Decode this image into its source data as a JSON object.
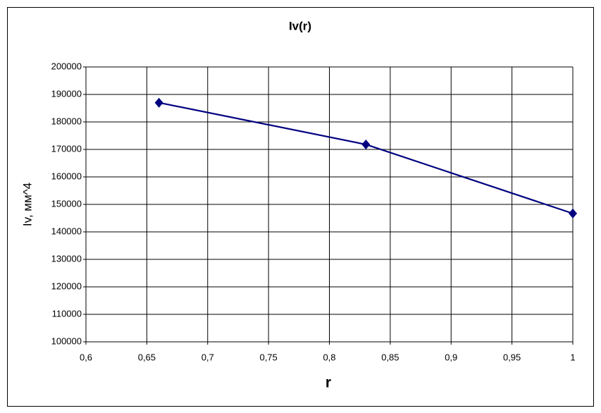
{
  "chart_data": {
    "type": "scatter-line",
    "title": "Iv(r)",
    "x_label": "r",
    "y_label": "Iv, мм^4",
    "x": [
      0.66,
      0.83,
      1
    ],
    "values": [
      187000,
      171800,
      146700
    ],
    "color": "#000080",
    "xlim": [
      0.6,
      1
    ],
    "xticks": [
      {
        "value": 0.6,
        "label": "0,6"
      },
      {
        "value": 0.65,
        "label": "0,65"
      },
      {
        "value": 0.7,
        "label": "0,7"
      },
      {
        "value": 0.75,
        "label": "0,75"
      },
      {
        "value": 0.8,
        "label": "0,8"
      },
      {
        "value": 0.85,
        "label": "0,85"
      },
      {
        "value": 0.9,
        "label": "0,9"
      },
      {
        "value": 0.95,
        "label": "0,95"
      },
      {
        "value": 1,
        "label": "1"
      }
    ],
    "ylim": [
      100000,
      200000
    ],
    "yticks": [
      100000,
      110000,
      120000,
      130000,
      140000,
      150000,
      160000,
      170000,
      180000,
      190000,
      200000
    ],
    "grid": true
  }
}
